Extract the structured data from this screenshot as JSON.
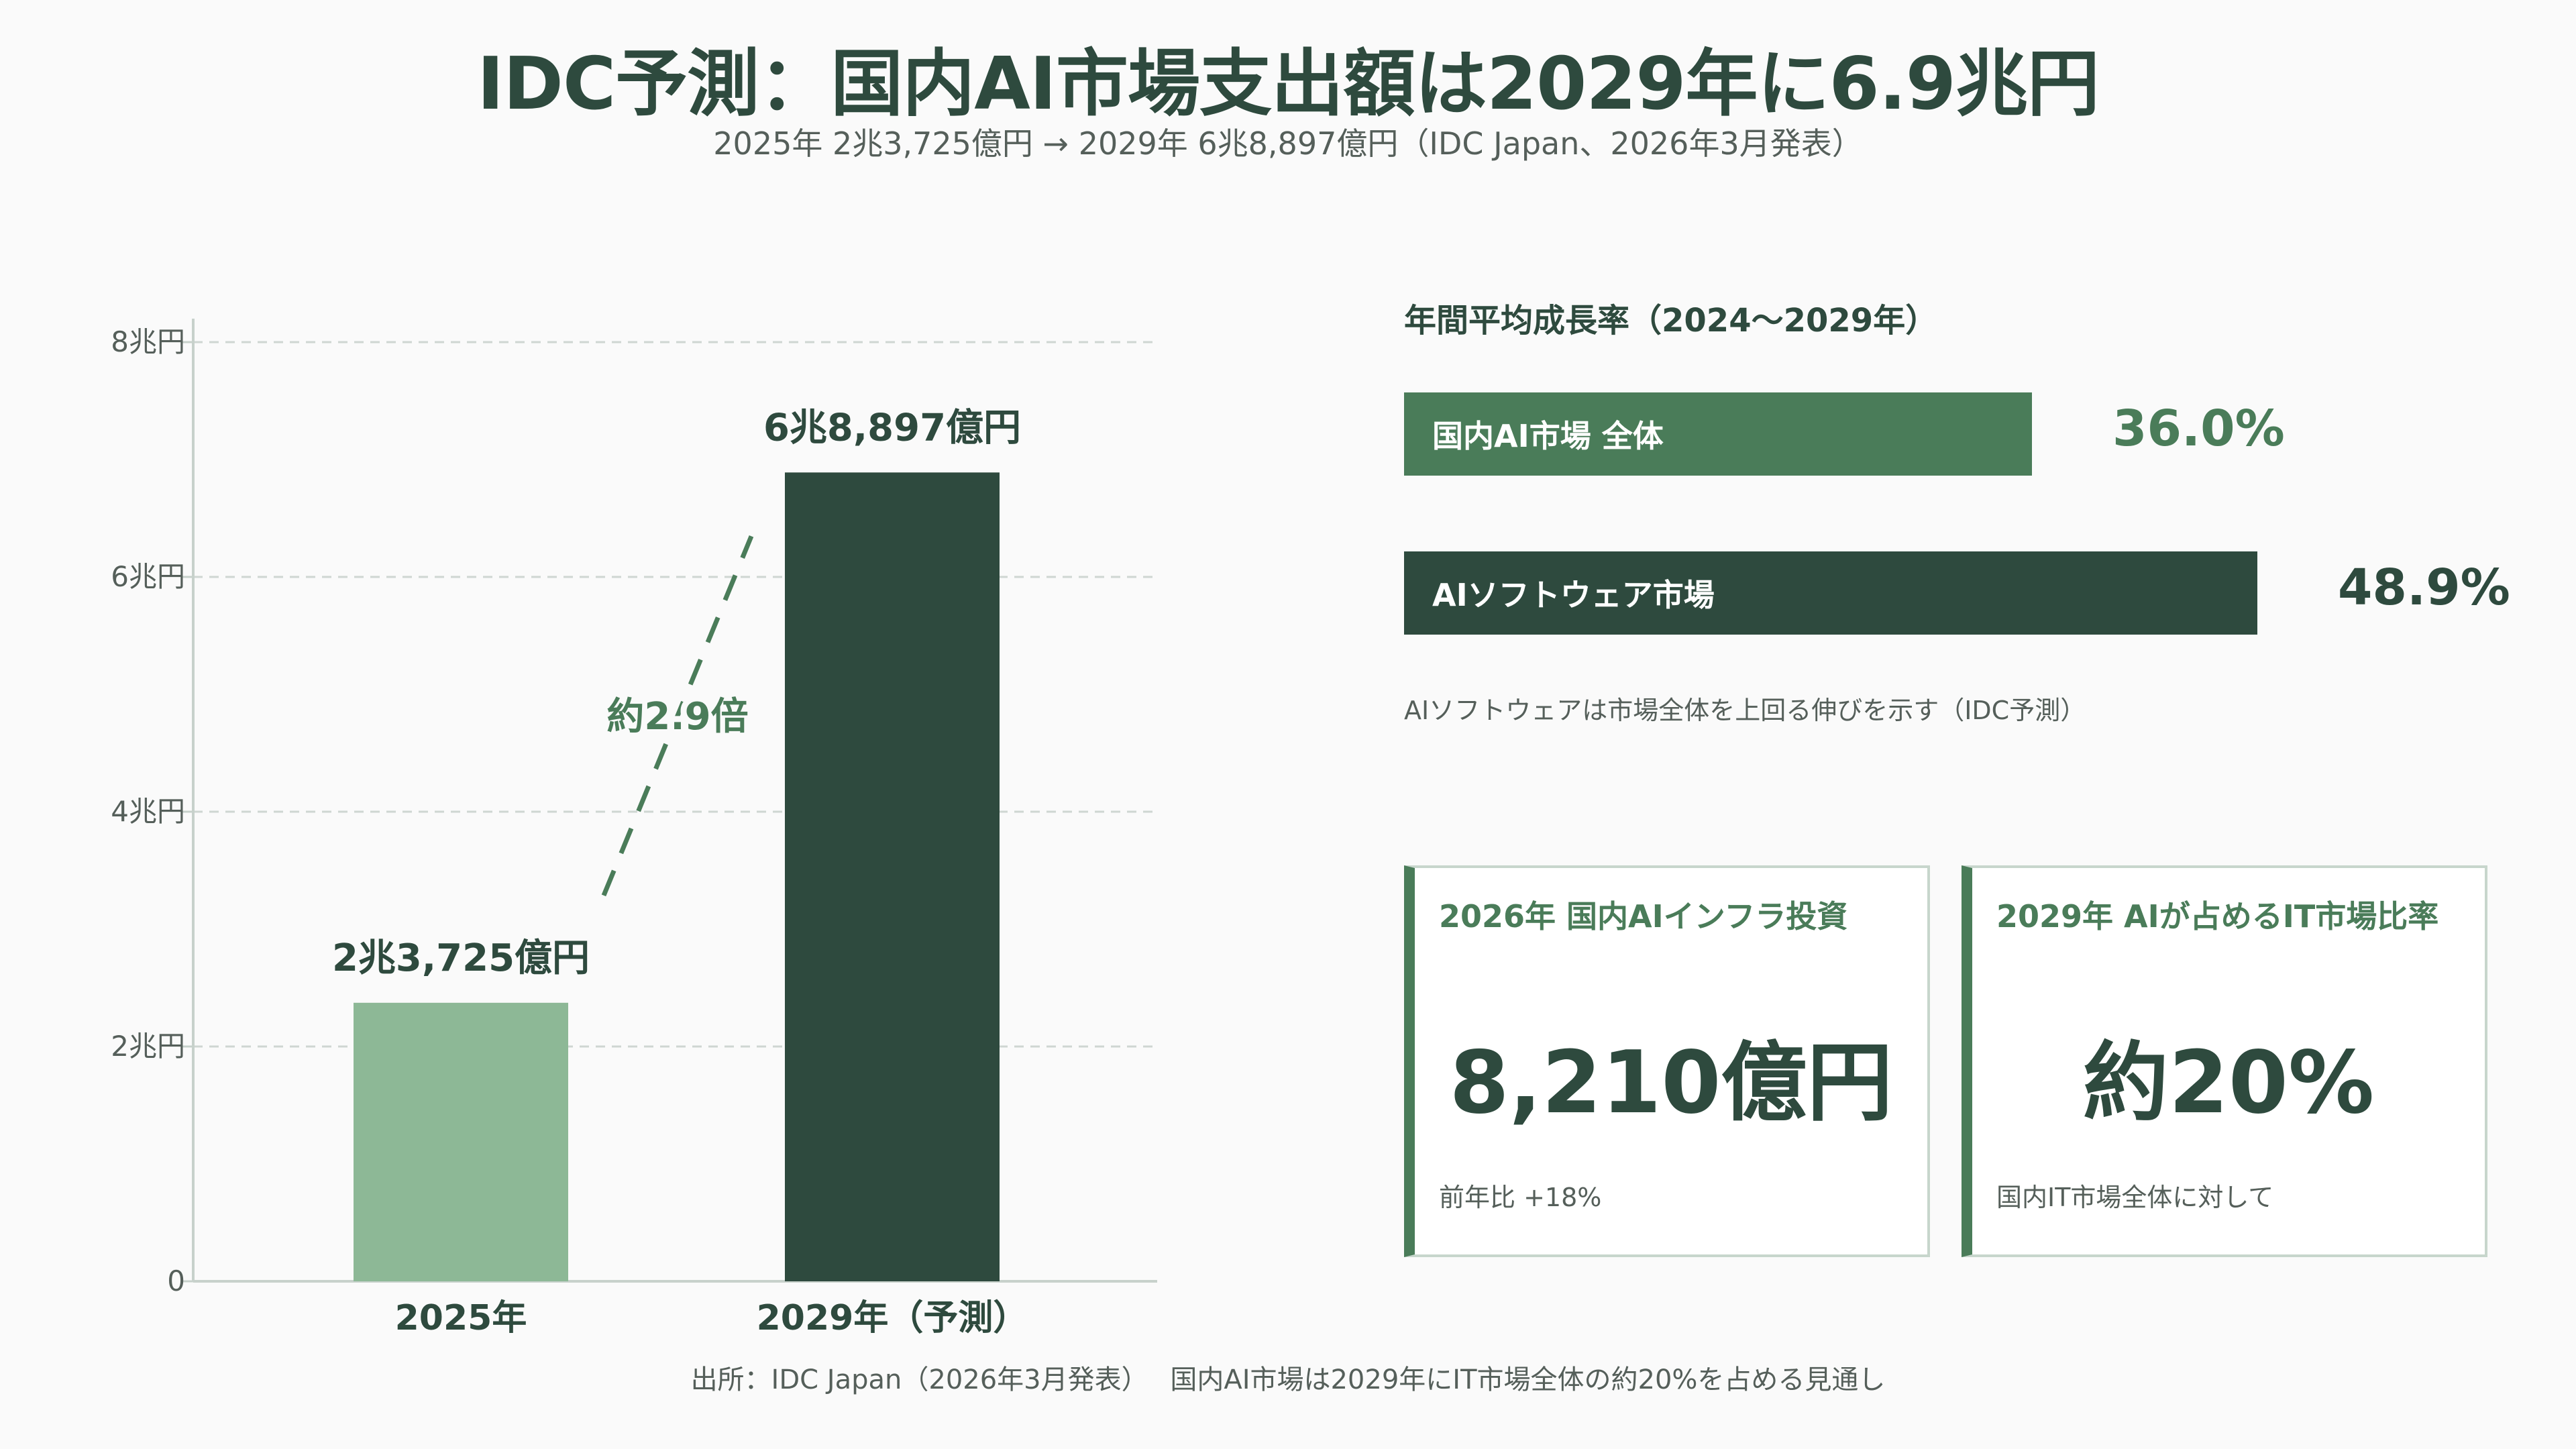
{
  "header": {
    "title": "IDC予測：国内AI市場支出額は2029年に6.9兆円",
    "subtitle": "2025年 2兆3,725億円 → 2029年 6兆8,897億円（IDC Japan、2026年3月発表）"
  },
  "chart_data": {
    "type": "bar",
    "categories": [
      "2025年",
      "2029年（予測）"
    ],
    "values": [
      2.3725,
      6.8897
    ],
    "value_labels": [
      "2兆3,725億円",
      "6兆8,897億円"
    ],
    "ylim": [
      0,
      8
    ],
    "yticks": [
      0,
      2,
      4,
      6,
      8
    ],
    "ytick_labels": [
      "0",
      "2兆円",
      "4兆円",
      "6兆円",
      "8兆円"
    ],
    "grid": true,
    "bar_colors": [
      "#8db896",
      "#2e4a3e"
    ],
    "annotation": "約2.9倍"
  },
  "growth": {
    "heading": "年間平均成長率（2024〜2029年）",
    "items": [
      {
        "label": "国内AI市場 全体",
        "value": "36.0%",
        "pct": 36.0,
        "color": "#4a7c59"
      },
      {
        "label": "AIソフトウェア市場",
        "value": "48.9%",
        "pct": 48.9,
        "color": "#2e4a3e"
      }
    ],
    "note": "AIソフトウェアは市場全体を上回る伸びを示す（IDC予測）"
  },
  "cards": [
    {
      "label": "2026年 国内AIインフラ投資",
      "value": "8,210億円",
      "note": "前年比 +18%"
    },
    {
      "label": "2029年 AIが占めるIT市場比率",
      "value": "約20%",
      "note": "国内IT市場全体に対して"
    }
  ],
  "footer": {
    "source": "出所：IDC Japan（2026年3月発表）　 国内AI市場は2029年にIT市場全体の約20%を占める見通し"
  },
  "colors": {
    "dark_green": "#2e4a3e",
    "mid_green": "#4a7c59",
    "light_green": "#8db896"
  }
}
